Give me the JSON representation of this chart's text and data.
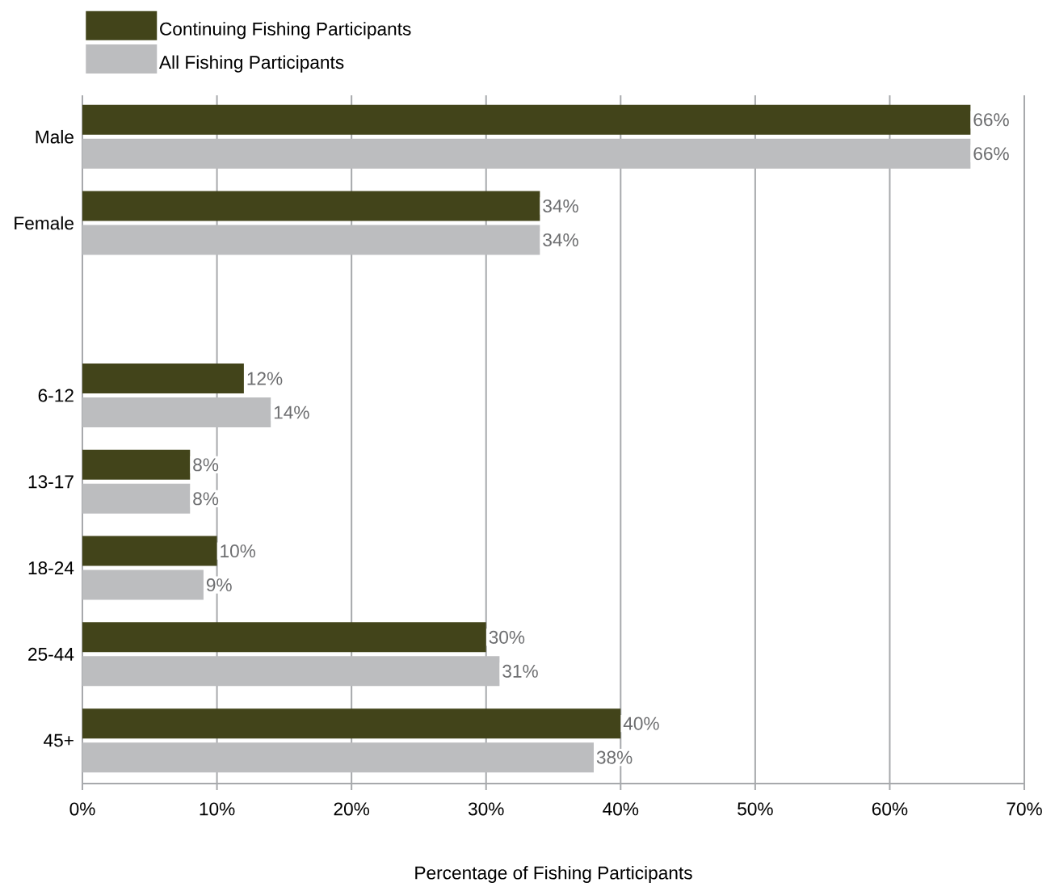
{
  "chart_data": {
    "type": "bar",
    "orientation": "horizontal",
    "xlabel": "Percentage of Fishing Participants",
    "categories": [
      "Male",
      "Female",
      null,
      "6-12",
      "13-17",
      "18-24",
      "25-44",
      "45+"
    ],
    "series": [
      {
        "name": "Continuing Fishing Participants",
        "color": "#42441a",
        "values": [
          66,
          34,
          null,
          12,
          8,
          10,
          30,
          40
        ],
        "value_labels": [
          "66%",
          "34%",
          null,
          "12%",
          "8%",
          "10%",
          "30%",
          "40%"
        ]
      },
      {
        "name": "All Fishing Participants",
        "color": "#bcbdbf",
        "values": [
          66,
          34,
          null,
          14,
          8,
          9,
          31,
          38
        ],
        "value_labels": [
          "66%",
          "34%",
          null,
          "14%",
          "8%",
          "9%",
          "31%",
          "38%"
        ]
      }
    ],
    "xlim": [
      0,
      70
    ],
    "xticks": [
      {
        "value": 0,
        "label": "0%"
      },
      {
        "value": 10,
        "label": "10%"
      },
      {
        "value": 20,
        "label": "20%"
      },
      {
        "value": 30,
        "label": "30%"
      },
      {
        "value": 40,
        "label": "40%"
      },
      {
        "value": 50,
        "label": "50%"
      },
      {
        "value": 60,
        "label": "60%"
      },
      {
        "value": 70,
        "label": "70%"
      }
    ],
    "grid": "x",
    "legend": "top left"
  }
}
